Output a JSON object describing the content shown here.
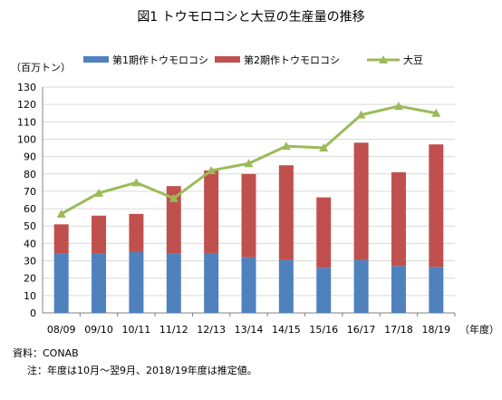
{
  "header": {
    "title": "図1 トウモロコシと大豆の生産量の推移",
    "y_unit": "（百万トン）",
    "x_unit": "（年度）"
  },
  "footer": {
    "source": "資料：CONAB",
    "note": "注：年度は10月～翌9月、2018/19年度は推定値。"
  },
  "colors": {
    "first_crop": "#4F81BD",
    "second_crop": "#C0504D",
    "soybean": "#9BBB59",
    "grid": "#d9d9d9"
  },
  "chart_data": {
    "type": "bar",
    "stacked": true,
    "title": "図1 トウモロコシと大豆の生産量の推移",
    "ylabel": "（百万トン）",
    "xlabel": "（年度）",
    "ylim": [
      0,
      130
    ],
    "ytick_step": 10,
    "grid": true,
    "legend_position": "top",
    "categories": [
      "08/09",
      "09/10",
      "10/11",
      "11/12",
      "12/13",
      "13/14",
      "14/15",
      "15/16",
      "16/17",
      "17/18",
      "18/19"
    ],
    "series": [
      {
        "name": "第1期作トウモロコシ",
        "kind": "bar",
        "color": "#4F81BD",
        "values": [
          34,
          34,
          35,
          34,
          34.5,
          32,
          30.5,
          26,
          30.5,
          27,
          26.5
        ]
      },
      {
        "name": "第2期作トウモロコシ",
        "kind": "bar",
        "color": "#C0504D",
        "values": [
          17,
          22,
          22,
          39,
          47.5,
          48,
          54.5,
          40.5,
          67.5,
          54,
          70.5
        ]
      },
      {
        "name": "大豆",
        "kind": "line",
        "color": "#9BBB59",
        "values": [
          57,
          69,
          75,
          66,
          82,
          86,
          96,
          95,
          114,
          119,
          115
        ]
      }
    ]
  }
}
